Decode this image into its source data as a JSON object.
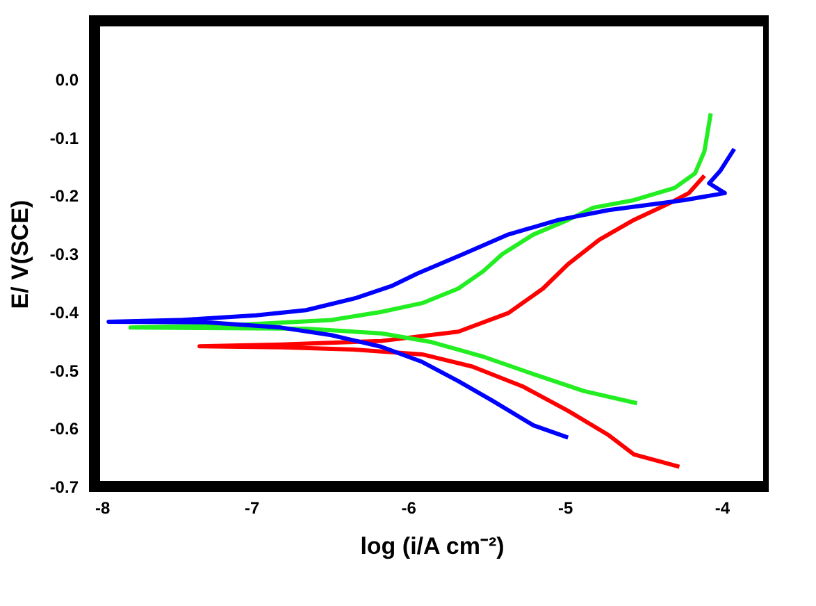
{
  "chart_data": {
    "type": "line",
    "xlabel": "log (i/A cm⁻²)",
    "ylabel": "E/ V(SCE)",
    "xlim": [
      -8,
      -3.7
    ],
    "ylim": [
      -0.7,
      0.1
    ],
    "xticks": [
      -8,
      -7,
      -6,
      -5,
      -4
    ],
    "yticks": [
      -0.7,
      -0.6,
      -0.5,
      -0.4,
      -0.3,
      -0.2,
      -0.1,
      {
        "value": 0,
        "label": "0.0"
      }
    ],
    "grid": false,
    "marker": "none",
    "line_style": "solid",
    "series": [
      {
        "color": "#ff0000",
        "x": [
          -4.27,
          -4.56,
          -4.72,
          -4.98,
          -5.27,
          -5.59,
          -5.91,
          -6.33,
          -6.81,
          -7.33,
          -6.81,
          -6.17,
          -5.68,
          -5.36,
          -5.14,
          -4.98,
          -4.78,
          -4.56,
          -4.33,
          -4.21,
          -4.11
        ],
        "values": [
          -0.666,
          -0.645,
          -0.612,
          -0.57,
          -0.528,
          -0.494,
          -0.473,
          -0.465,
          -0.461,
          -0.459,
          -0.456,
          -0.45,
          -0.434,
          -0.402,
          -0.36,
          -0.318,
          -0.276,
          -0.242,
          -0.213,
          -0.196,
          -0.166
        ]
      },
      {
        "color": "#22ee22",
        "x": [
          -4.54,
          -4.88,
          -5.2,
          -5.52,
          -5.85,
          -6.17,
          -6.65,
          -7.77,
          -7.13,
          -6.49,
          -6.17,
          -5.91,
          -5.68,
          -5.52,
          -5.4,
          -5.2,
          -4.98,
          -4.82,
          -4.56,
          -4.3,
          -4.17,
          -4.11,
          -4.07
        ],
        "values": [
          -0.557,
          -0.536,
          -0.507,
          -0.477,
          -0.452,
          -0.437,
          -0.429,
          -0.427,
          -0.423,
          -0.414,
          -0.4,
          -0.385,
          -0.36,
          -0.33,
          -0.301,
          -0.267,
          -0.242,
          -0.221,
          -0.208,
          -0.187,
          -0.162,
          -0.124,
          -0.059
        ]
      },
      {
        "color": "#0000ff",
        "x": [
          -4.98,
          -5.2,
          -5.46,
          -5.68,
          -5.91,
          -6.17,
          -6.49,
          -6.81,
          -7.29,
          -7.91,
          -7.45,
          -6.97,
          -6.65,
          -6.33,
          -6.1,
          -5.94,
          -5.65,
          -5.36,
          -5.04,
          -4.72,
          -4.24,
          -3.98,
          -4.08,
          -4.01,
          -3.92
        ],
        "values": [
          -0.616,
          -0.595,
          -0.553,
          -0.519,
          -0.486,
          -0.46,
          -0.44,
          -0.427,
          -0.418,
          -0.417,
          -0.414,
          -0.406,
          -0.397,
          -0.376,
          -0.355,
          -0.334,
          -0.301,
          -0.267,
          -0.242,
          -0.225,
          -0.208,
          -0.196,
          -0.179,
          -0.158,
          -0.12
        ]
      }
    ]
  }
}
